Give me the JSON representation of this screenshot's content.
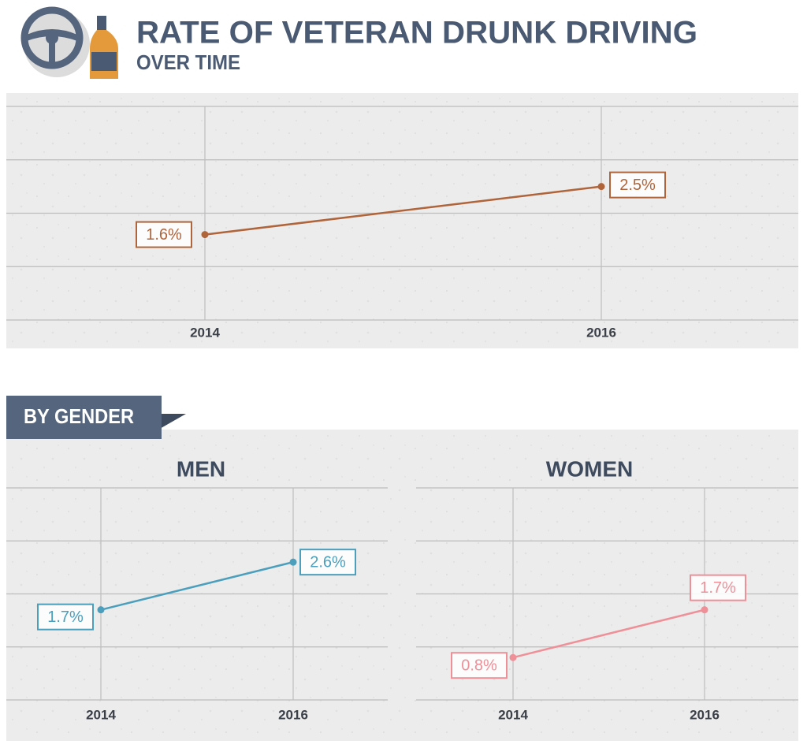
{
  "title": "RATE OF VETERAN DRUNK DRIVING",
  "subtitle": "OVER TIME",
  "section_label": "BY GENDER",
  "chart_data": [
    {
      "type": "line",
      "categories": [
        "2014",
        "2016"
      ],
      "values": [
        1.6,
        2.5
      ],
      "value_labels": [
        "1.6%",
        "2.5%"
      ],
      "color": "#b0643a",
      "ylim": [
        0,
        4
      ],
      "ygrid": [
        0,
        1,
        2,
        3,
        4
      ]
    },
    {
      "type": "line",
      "title": "MEN",
      "categories": [
        "2014",
        "2016"
      ],
      "values": [
        1.7,
        2.6
      ],
      "value_labels": [
        "1.7%",
        "2.6%"
      ],
      "color": "#4b9fbd",
      "ylim": [
        0,
        4
      ],
      "ygrid": [
        0,
        1,
        2,
        3,
        4
      ]
    },
    {
      "type": "line",
      "title": "WOMEN",
      "categories": [
        "2014",
        "2016"
      ],
      "values": [
        0.8,
        1.7
      ],
      "value_labels": [
        "0.8%",
        "1.7%"
      ],
      "color": "#ef8f98",
      "ylim": [
        0,
        4
      ],
      "ygrid": [
        0,
        1,
        2,
        3,
        4
      ]
    }
  ]
}
